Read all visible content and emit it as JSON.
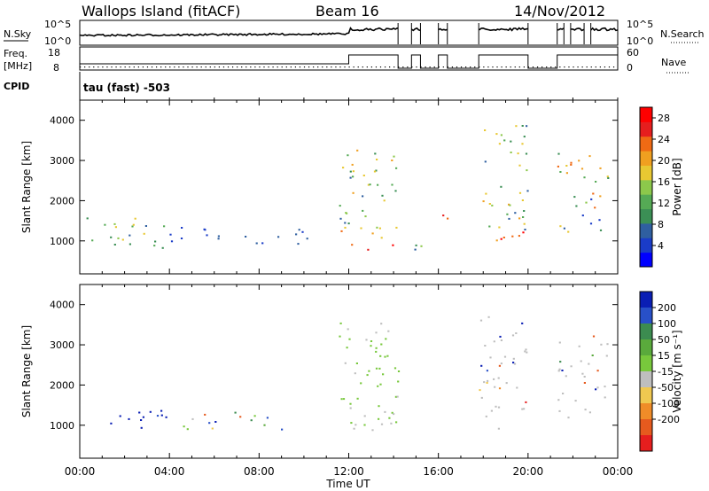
{
  "header": {
    "site": "Wallops Island (fitACF)",
    "beam": "Beam 16",
    "date": "14/Nov/2012"
  },
  "top_panels": {
    "nsky": {
      "label": "N.Sky",
      "right_label": "N.Search",
      "tick_labels": [
        "10^5",
        "10^0"
      ],
      "right_tick_labels": [
        "10^5",
        "10^0"
      ]
    },
    "freq": {
      "label_line1": "Freq.",
      "label_line2": "[MHz]",
      "right_label": "Nave",
      "tick_labels": [
        "18",
        "8"
      ],
      "right_tick_labels": [
        "60",
        "0"
      ]
    },
    "cpid": {
      "label": "CPID",
      "text": "tau (fast) -503"
    }
  },
  "chart_data": [
    {
      "type": "heatmap",
      "name": "power",
      "ylabel": "Slant Range [km]",
      "xlabel": "",
      "x_ticks": [
        "00:00",
        "04:00",
        "08:00",
        "12:00",
        "16:00",
        "20:00",
        "00:00"
      ],
      "xlim_hours": [
        0,
        24
      ],
      "ylim_km": [
        180,
        4500
      ],
      "y_ticks": [
        1000,
        2000,
        3000,
        4000
      ],
      "colorbar": {
        "label": "Power [dB]",
        "ticks": [
          4,
          8,
          12,
          16,
          20,
          24,
          28
        ],
        "range": [
          0,
          30
        ],
        "colors": [
          "#0000ff",
          "#1a3cc8",
          "#2f5fa0",
          "#3b8f55",
          "#55aa55",
          "#8cc84b",
          "#e8c832",
          "#f0a020",
          "#f06a14",
          "#e61e1e",
          "#ff0000"
        ]
      },
      "echo_regions": [
        {
          "t0": 0.3,
          "t1": 4.0,
          "r0": 800,
          "r1": 1650,
          "p": [
            5,
            18
          ]
        },
        {
          "t0": 4.0,
          "t1": 10.5,
          "r0": 900,
          "r1": 1350,
          "p": [
            3,
            8
          ]
        },
        {
          "t0": 11.5,
          "t1": 14.2,
          "r0": 800,
          "r1": 1400,
          "p": [
            16,
            28
          ]
        },
        {
          "t0": 11.5,
          "t1": 14.2,
          "r0": 1300,
          "r1": 3300,
          "p": [
            6,
            20
          ]
        },
        {
          "t0": 14.8,
          "t1": 15.2,
          "r0": 800,
          "r1": 2000,
          "p": [
            6,
            26
          ]
        },
        {
          "t0": 16.0,
          "t1": 16.4,
          "r0": 800,
          "r1": 1800,
          "p": [
            8,
            28
          ]
        },
        {
          "t0": 17.8,
          "t1": 20.0,
          "r0": 850,
          "r1": 1300,
          "p": [
            14,
            28
          ]
        },
        {
          "t0": 17.8,
          "t1": 20.0,
          "r0": 1300,
          "r1": 4000,
          "p": [
            6,
            22
          ]
        },
        {
          "t0": 21.3,
          "t1": 23.6,
          "r0": 1200,
          "r1": 3200,
          "p": [
            4,
            26
          ]
        }
      ]
    },
    {
      "type": "heatmap",
      "name": "velocity",
      "ylabel": "Slant Range [km]",
      "xlabel": "Time UT",
      "x_ticks": [
        "00:00",
        "04:00",
        "08:00",
        "12:00",
        "16:00",
        "20:00",
        "00:00"
      ],
      "xlim_hours": [
        0,
        24
      ],
      "ylim_km": [
        180,
        4500
      ],
      "y_ticks": [
        1000,
        2000,
        3000,
        4000
      ],
      "colorbar": {
        "label": "Velocity [m s⁻¹]",
        "ticks": [
          "200",
          "100",
          "50",
          "15",
          "-15",
          "-50",
          "-100",
          "-200"
        ],
        "colors": [
          "#0a1eb4",
          "#2850c8",
          "#3c8c50",
          "#5aaa3c",
          "#78c83c",
          "#bebebe",
          "#f0c850",
          "#f08c28",
          "#e65a1e",
          "#e61e1e"
        ]
      },
      "echo_regions": [
        {
          "t0": 1.0,
          "t1": 4.0,
          "r0": 850,
          "r1": 1500,
          "v": "toward"
        },
        {
          "t0": 4.0,
          "t1": 9.0,
          "r0": 900,
          "r1": 1350,
          "v": "mixed"
        },
        {
          "t0": 11.5,
          "t1": 14.2,
          "r0": 900,
          "r1": 3600,
          "v": "green"
        },
        {
          "t0": 12.0,
          "t1": 14.2,
          "r0": 900,
          "r1": 1500,
          "v": "grey"
        },
        {
          "t0": 17.8,
          "t1": 20.0,
          "r0": 900,
          "r1": 3800,
          "v": "grey"
        },
        {
          "t0": 21.3,
          "t1": 23.6,
          "r0": 1200,
          "r1": 3300,
          "v": "grey"
        }
      ]
    }
  ]
}
